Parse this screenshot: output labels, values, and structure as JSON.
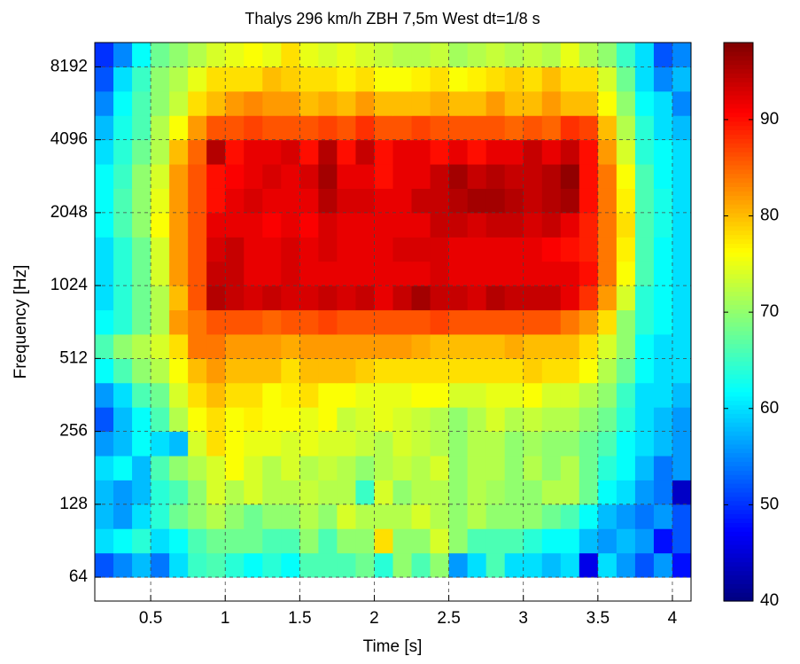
{
  "chart_data": {
    "type": "heatmap",
    "title": "Thalys 296 km/h ZBH 7,5m West dt=1/8 s",
    "xlabel": "Time [s]",
    "ylabel": "Frequency [Hz]",
    "colormap": "jet",
    "log_y": true,
    "grid": true,
    "xbins": [
      0.125,
      0.25,
      0.375,
      0.5,
      0.625,
      0.75,
      0.875,
      1,
      1.125,
      1.25,
      1.375,
      1.5,
      1.625,
      1.75,
      1.875,
      2,
      2.125,
      2.25,
      2.375,
      2.5,
      2.625,
      2.75,
      2.875,
      3,
      3.125,
      3.25,
      3.375,
      3.5,
      3.625,
      3.75,
      3.875,
      4,
      4.125
    ],
    "ybins": [
      64,
      80.6,
      101.6,
      128,
      161.3,
      203.2,
      256,
      322.5,
      406.4,
      512,
      645.1,
      812.7,
      1024,
      1290.2,
      1625.5,
      2048,
      2580.3,
      3251,
      4096,
      5160.6,
      6502,
      8192,
      10321.3
    ],
    "xlim": [
      0.125,
      4.125
    ],
    "ylim": [
      51,
      10321.3
    ],
    "xticks": [
      0.5,
      1,
      1.5,
      2,
      2.5,
      3,
      3.5,
      4
    ],
    "yticks": [
      64,
      128,
      256,
      512,
      1024,
      2048,
      4096,
      8192
    ],
    "clim": [
      40,
      98
    ],
    "cticks": [
      40,
      50,
      60,
      70,
      80,
      90
    ],
    "z": [
      [
        52,
        55,
        58,
        54,
        60,
        65,
        66,
        64,
        62,
        64,
        62,
        66,
        66,
        66,
        68,
        64,
        70,
        66,
        70,
        56,
        60,
        66,
        60,
        60,
        58,
        60,
        46,
        60,
        56,
        52,
        56,
        48
      ],
      [
        60,
        62,
        64,
        60,
        62,
        66,
        68,
        68,
        68,
        66,
        66,
        70,
        66,
        70,
        70,
        78,
        70,
        70,
        74,
        70,
        66,
        66,
        66,
        64,
        62,
        62,
        58,
        56,
        58,
        56,
        48,
        52
      ],
      [
        58,
        56,
        60,
        64,
        68,
        70,
        72,
        70,
        68,
        70,
        70,
        72,
        70,
        74,
        72,
        72,
        72,
        74,
        72,
        70,
        72,
        70,
        70,
        70,
        68,
        66,
        62,
        58,
        56,
        54,
        56,
        52
      ],
      [
        58,
        56,
        58,
        64,
        66,
        70,
        74,
        72,
        74,
        72,
        72,
        73,
        72,
        72,
        65,
        74,
        70,
        72,
        72,
        70,
        72,
        71,
        70,
        70,
        72,
        72,
        68,
        62,
        60,
        56,
        54,
        44
      ],
      [
        60,
        62,
        58,
        66,
        70,
        72,
        74,
        76,
        74,
        72,
        74,
        72,
        73,
        72,
        70,
        72,
        73,
        72,
        74,
        70,
        72,
        72,
        70,
        72,
        70,
        72,
        68,
        64,
        62,
        58,
        54,
        56
      ],
      [
        56,
        58,
        62,
        60,
        58,
        74,
        78,
        76,
        75,
        75,
        74,
        75,
        74,
        74,
        73,
        72,
        74,
        73,
        72,
        70,
        72,
        72,
        70,
        71,
        70,
        70,
        68,
        66,
        62,
        60,
        58,
        56
      ],
      [
        52,
        58,
        62,
        66,
        72,
        76,
        78,
        76,
        77,
        76,
        76,
        75,
        76,
        73,
        74,
        75,
        74,
        73,
        72,
        70,
        72,
        74,
        72,
        73,
        72,
        72,
        70,
        68,
        64,
        60,
        58,
        56
      ],
      [
        56,
        60,
        66,
        68,
        74,
        78,
        80,
        78,
        78,
        76,
        77,
        78,
        76,
        76,
        75,
        75,
        75,
        76,
        76,
        74,
        74,
        75,
        75,
        76,
        74,
        74,
        72,
        70,
        65,
        60,
        60,
        58
      ],
      [
        62,
        66,
        70,
        72,
        76,
        80,
        82,
        80,
        80,
        80,
        78,
        80,
        80,
        80,
        79,
        78,
        78,
        78,
        78,
        78,
        78,
        78,
        78,
        79,
        78,
        78,
        76,
        72,
        68,
        62,
        60,
        60
      ],
      [
        66,
        70,
        72,
        74,
        78,
        84,
        84,
        82,
        82,
        82,
        81,
        82,
        82,
        82,
        82,
        82,
        82,
        81,
        80,
        80,
        80,
        80,
        81,
        80,
        80,
        80,
        78,
        74,
        70,
        62,
        60,
        60
      ],
      [
        62,
        64,
        68,
        72,
        82,
        84,
        86,
        86,
        86,
        85,
        86,
        86,
        87,
        86,
        86,
        86,
        86,
        86,
        87,
        86,
        86,
        86,
        86,
        86,
        86,
        84,
        82,
        78,
        70,
        64,
        62,
        60
      ],
      [
        60,
        64,
        68,
        72,
        80,
        86,
        95,
        94,
        93,
        94,
        93,
        93,
        94,
        93,
        94,
        92,
        94,
        96,
        94,
        94,
        93,
        95,
        94,
        94,
        94,
        92,
        88,
        82,
        74,
        64,
        62,
        60
      ],
      [
        60,
        64,
        68,
        74,
        82,
        86,
        94,
        94,
        92,
        92,
        93,
        92,
        92,
        92,
        92,
        92,
        92,
        92,
        93,
        92,
        92,
        92,
        92,
        92,
        92,
        92,
        90,
        84,
        76,
        66,
        62,
        60
      ],
      [
        60,
        64,
        68,
        74,
        82,
        86,
        93,
        94,
        92,
        92,
        93,
        92,
        93,
        92,
        92,
        92,
        93,
        93,
        93,
        92,
        92,
        92,
        92,
        92,
        91,
        90,
        89,
        84,
        77,
        66,
        62,
        60
      ],
      [
        62,
        66,
        70,
        76,
        82,
        86,
        92,
        92,
        92,
        91,
        92,
        91,
        93,
        92,
        92,
        92,
        92,
        92,
        94,
        94,
        93,
        94,
        94,
        93,
        94,
        92,
        89,
        84,
        78,
        66,
        63,
        60
      ],
      [
        62,
        66,
        70,
        75,
        82,
        86,
        90,
        92,
        93,
        92,
        92,
        92,
        95,
        93,
        93,
        92,
        92,
        94,
        94,
        95,
        96,
        96,
        95,
        94,
        95,
        96,
        90,
        84,
        77,
        66,
        63,
        60
      ],
      [
        62,
        65,
        70,
        74,
        82,
        86,
        90,
        91,
        92,
        93,
        92,
        93,
        96,
        92,
        92,
        90,
        92,
        92,
        94,
        96,
        94,
        95,
        94,
        94,
        95,
        97,
        90,
        84,
        76,
        66,
        62,
        60
      ],
      [
        60,
        64,
        68,
        72,
        80,
        85,
        95,
        90,
        92,
        92,
        93,
        90,
        95,
        90,
        94,
        90,
        92,
        92,
        90,
        92,
        90,
        92,
        92,
        94,
        92,
        94,
        90,
        82,
        74,
        64,
        62,
        60
      ],
      [
        58,
        63,
        66,
        72,
        76,
        82,
        86,
        86,
        87,
        86,
        86,
        86,
        87,
        86,
        88,
        86,
        86,
        87,
        86,
        86,
        86,
        86,
        85,
        86,
        85,
        88,
        87,
        80,
        72,
        64,
        60,
        58
      ],
      [
        55,
        62,
        66,
        70,
        73,
        78,
        80,
        82,
        83,
        82,
        82,
        80,
        81,
        80,
        82,
        80,
        80,
        80,
        81,
        80,
        80,
        82,
        80,
        80,
        82,
        80,
        80,
        76,
        70,
        62,
        60,
        55
      ],
      [
        52,
        60,
        65,
        70,
        72,
        75,
        78,
        78,
        78,
        80,
        79,
        78,
        78,
        77,
        78,
        76,
        76,
        77,
        78,
        76,
        77,
        78,
        79,
        78,
        80,
        78,
        78,
        74,
        68,
        60,
        55,
        58
      ],
      [
        50,
        55,
        62,
        68,
        70,
        72,
        74,
        75,
        76,
        75,
        78,
        75,
        74,
        75,
        74,
        73,
        72,
        72,
        73,
        71,
        72,
        73,
        72,
        73,
        72,
        75,
        72,
        70,
        65,
        60,
        52,
        55
      ]
    ]
  }
}
